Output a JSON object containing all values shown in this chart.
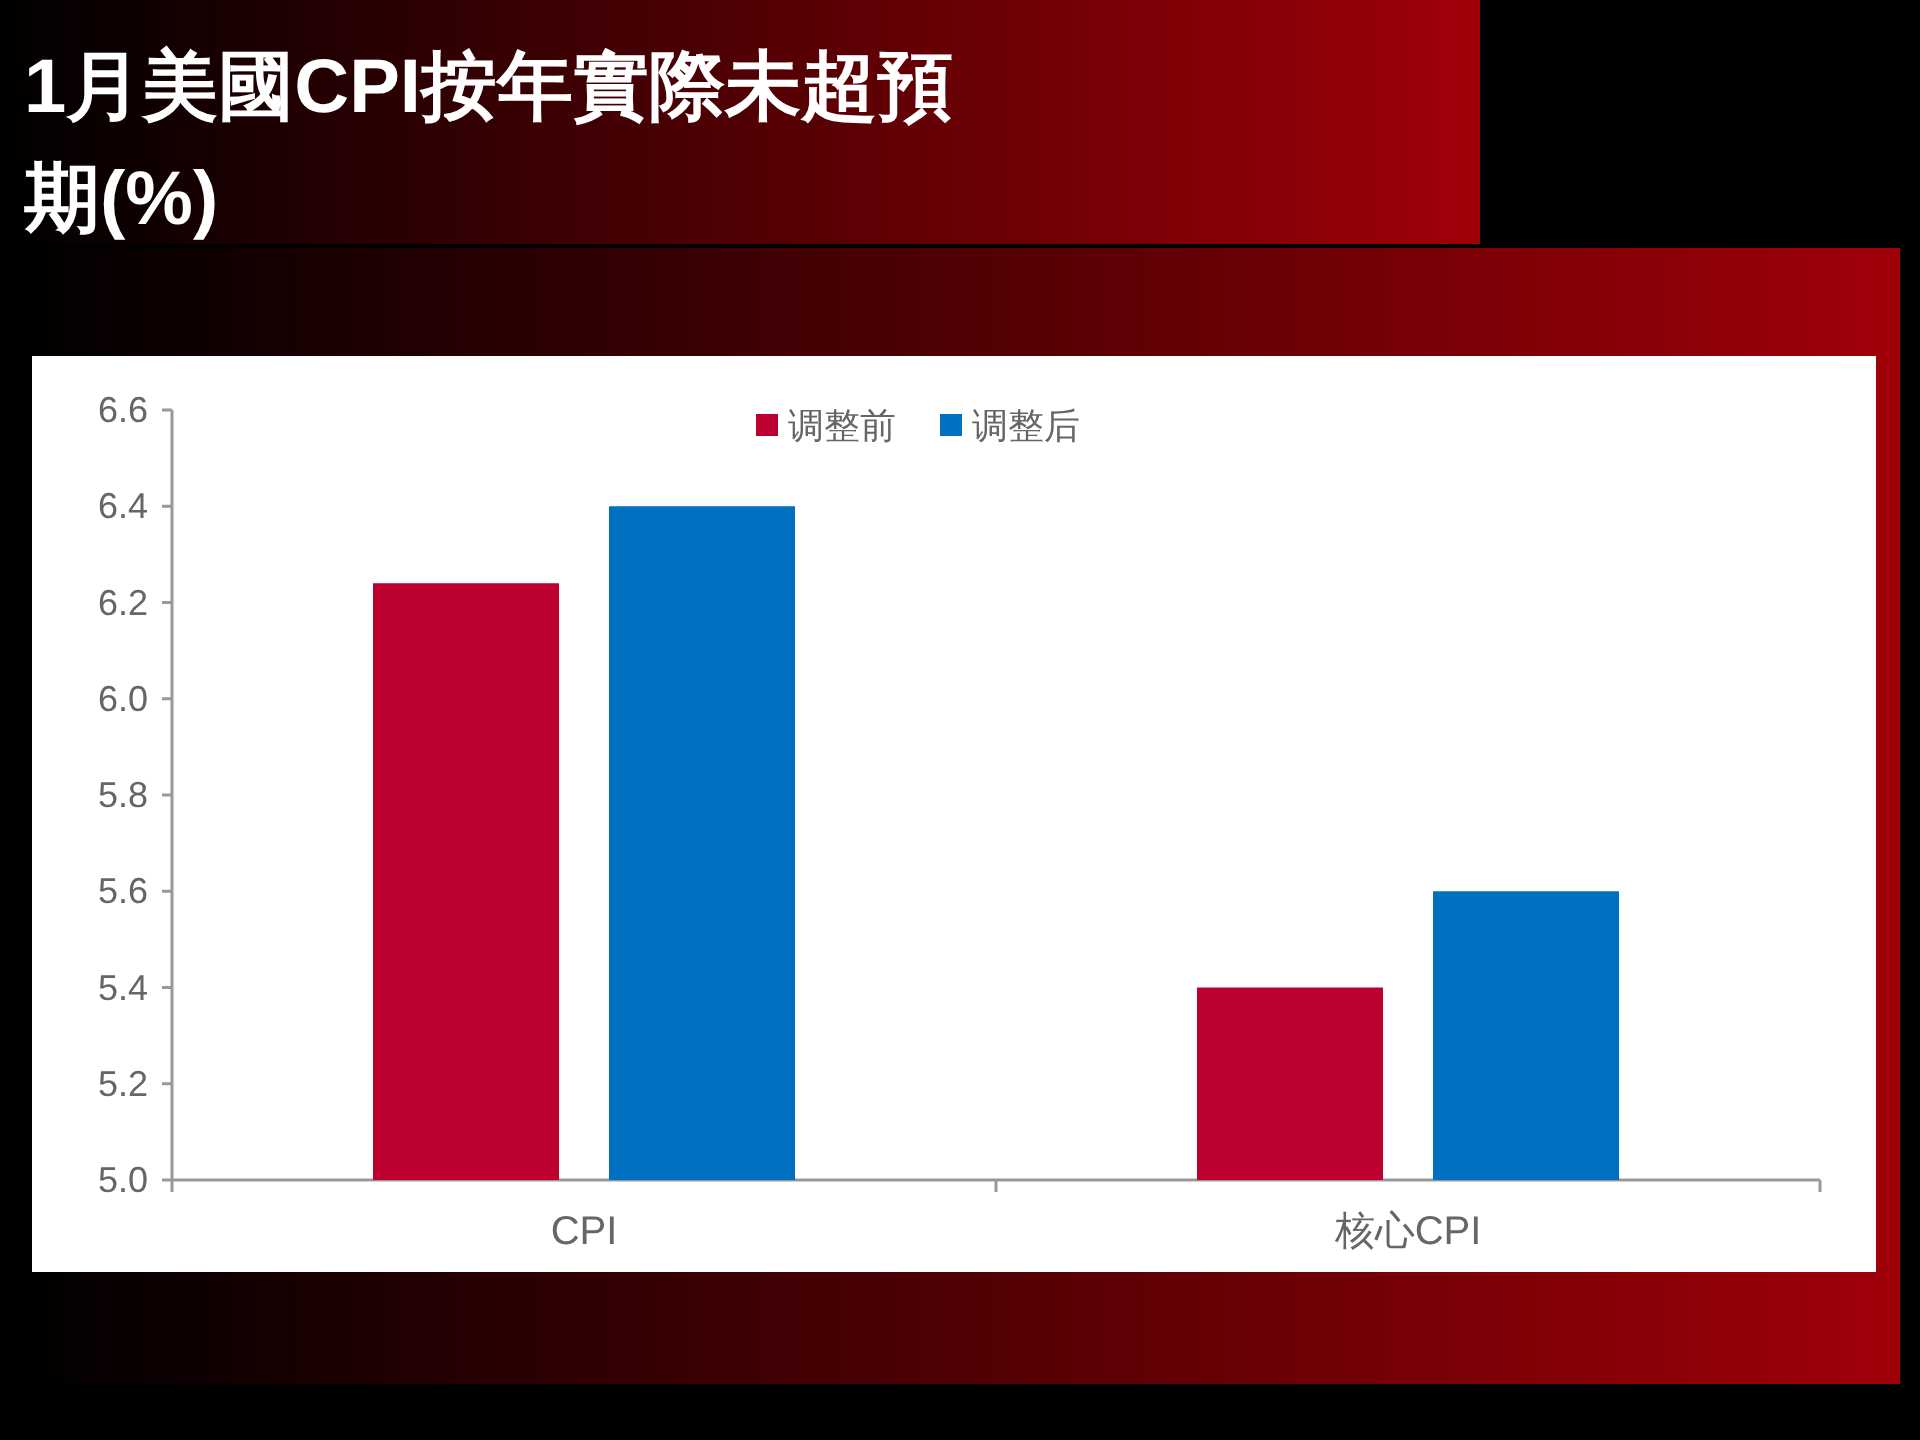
{
  "chart_data": {
    "type": "bar",
    "title": "1月美國CPI按年實際未超預期(%)",
    "categories": [
      "CPI",
      "核心CPI"
    ],
    "series": [
      {
        "name": "调整前",
        "color": "#bc0030",
        "values": [
          6.24,
          5.4
        ]
      },
      {
        "name": "调整后",
        "color": "#0070c0",
        "values": [
          6.4,
          5.6
        ]
      }
    ],
    "ylim": [
      5.0,
      6.6
    ],
    "yticks": [
      {
        "value": 5.0,
        "label": "5.0"
      },
      {
        "value": 5.2,
        "label": "5.2"
      },
      {
        "value": 5.4,
        "label": "5.4"
      },
      {
        "value": 5.6,
        "label": "5.6"
      },
      {
        "value": 5.8,
        "label": "5.8"
      },
      {
        "value": 6.0,
        "label": "6.0"
      },
      {
        "value": 6.2,
        "label": "6.2"
      },
      {
        "value": 6.4,
        "label": "6.4"
      },
      {
        "value": 6.6,
        "label": "6.6"
      }
    ],
    "legend": "top",
    "grid": false
  }
}
